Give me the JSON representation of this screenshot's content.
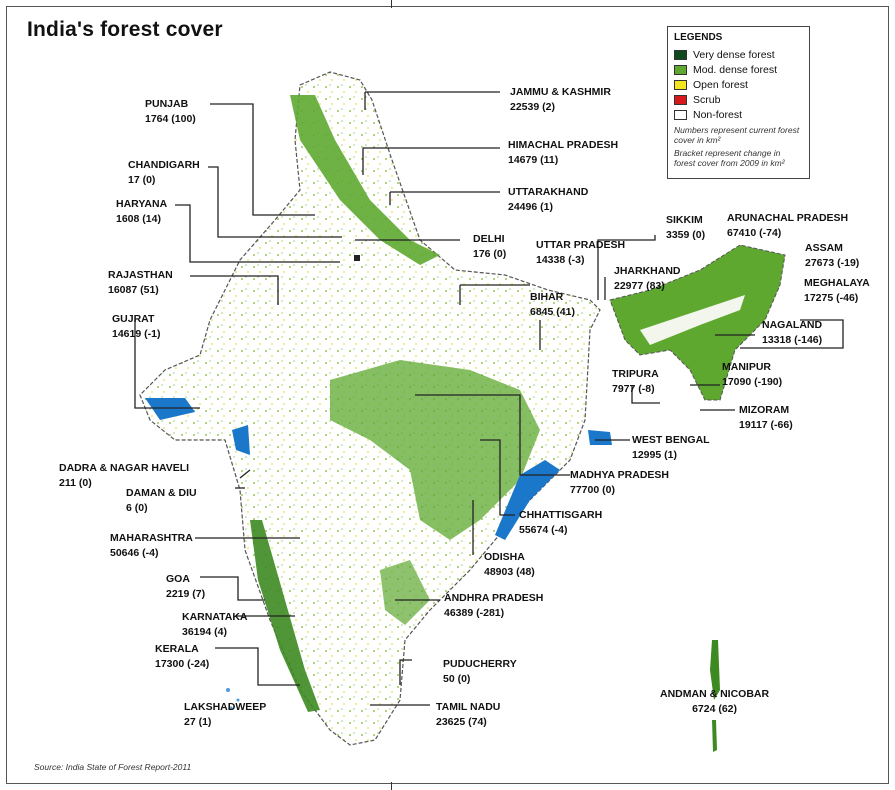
{
  "title": "India's forest cover",
  "source": "Source: India State of Forest Report-2011",
  "legend": {
    "heading": "LEGENDS",
    "items": [
      {
        "label": "Very dense forest",
        "color": "#0e4a1c"
      },
      {
        "label": "Mod. dense forest",
        "color": "#5ea830"
      },
      {
        "label": "Open forest",
        "color": "#f2e51d"
      },
      {
        "label": "Scrub",
        "color": "#d7191c"
      },
      {
        "label": "Non-forest",
        "color": "#ffffff"
      }
    ],
    "note1": "Numbers represent current forest cover in km²",
    "note2": "Bracket represent change in forest cover from 2009 in km²"
  },
  "regions": [
    {
      "name": "JAMMU & KASHMIR",
      "value": "22539 (2)"
    },
    {
      "name": "PUNJAB",
      "value": "1764 (100)"
    },
    {
      "name": "HIMACHAL PRADESH",
      "value": "14679 (11)"
    },
    {
      "name": "CHANDIGARH",
      "value": "17 (0)"
    },
    {
      "name": "UTTARAKHAND",
      "value": "24496 (1)"
    },
    {
      "name": "HARYANA",
      "value": "1608 (14)"
    },
    {
      "name": "DELHI",
      "value": "176 (0)"
    },
    {
      "name": "UTTAR PRADESH",
      "value": "14338 (-3)"
    },
    {
      "name": "SIKKIM",
      "value": "3359 (0)"
    },
    {
      "name": "ARUNACHAL PRADESH",
      "value": "67410 (-74)"
    },
    {
      "name": "ASSAM",
      "value": "27673 (-19)"
    },
    {
      "name": "RAJASTHAN",
      "value": "16087 (51)"
    },
    {
      "name": "JHARKHAND",
      "value": "22977 (83)"
    },
    {
      "name": "MEGHALAYA",
      "value": "17275 (-46)"
    },
    {
      "name": "BIHAR",
      "value": "6845 (41)"
    },
    {
      "name": "GUJRAT",
      "value": "14619 (-1)"
    },
    {
      "name": "NAGALAND",
      "value": "13318 (-146)"
    },
    {
      "name": "MANIPUR",
      "value": "17090 (-190)"
    },
    {
      "name": "TRIPURA",
      "value": "7977 (-8)"
    },
    {
      "name": "MIZORAM",
      "value": "19117 (-66)"
    },
    {
      "name": "WEST BENGAL",
      "value": "12995 (1)"
    },
    {
      "name": "MADHYA PRADESH",
      "value": "77700 (0)"
    },
    {
      "name": "DADRA & NAGAR HAVELI",
      "value": "211 (0)"
    },
    {
      "name": "DAMAN & DIU",
      "value": "6 (0)"
    },
    {
      "name": "CHHATTISGARH",
      "value": "55674 (-4)"
    },
    {
      "name": "MAHARASHTRA",
      "value": "50646 (-4)"
    },
    {
      "name": "ODISHA",
      "value": "48903 (48)"
    },
    {
      "name": "GOA",
      "value": "2219 (7)"
    },
    {
      "name": "ANDHRA PRADESH",
      "value": "46389 (-281)"
    },
    {
      "name": "KARNATAKA",
      "value": "36194 (4)"
    },
    {
      "name": "KERALA",
      "value": "17300 (-24)"
    },
    {
      "name": "PUDUCHERRY",
      "value": "50 (0)"
    },
    {
      "name": "ANDMAN & NICOBAR",
      "value": "6724 (62)"
    },
    {
      "name": "LAKSHADWEEP",
      "value": "27 (1)"
    },
    {
      "name": "TAMIL NADU",
      "value": "23625 (74)"
    }
  ]
}
